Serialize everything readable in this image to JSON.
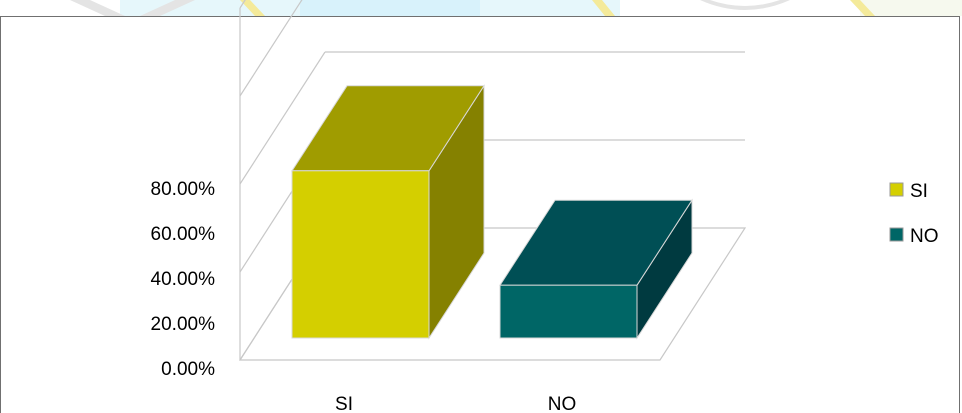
{
  "chart_data": {
    "type": "bar",
    "categories": [
      "SI",
      "NO"
    ],
    "series": [
      {
        "values": [
          0.76,
          0.24
        ]
      }
    ],
    "yticks": [
      "0.00%",
      "20.00%",
      "40.00%",
      "60.00%",
      "80.00%"
    ],
    "ylim": [
      0,
      1.0
    ],
    "grid": true,
    "legend": {
      "placement": "right",
      "entries": [
        {
          "label": "SI",
          "color": "#d4cf00"
        },
        {
          "label": "NO",
          "color": "#006666"
        }
      ]
    },
    "bar_colors": {
      "SI": {
        "front": "#d4cf00",
        "top": "#a09c00",
        "side": "#858100"
      },
      "NO": {
        "front": "#006666",
        "top": "#004f55",
        "side": "#003a40"
      }
    },
    "style_3d": true
  }
}
